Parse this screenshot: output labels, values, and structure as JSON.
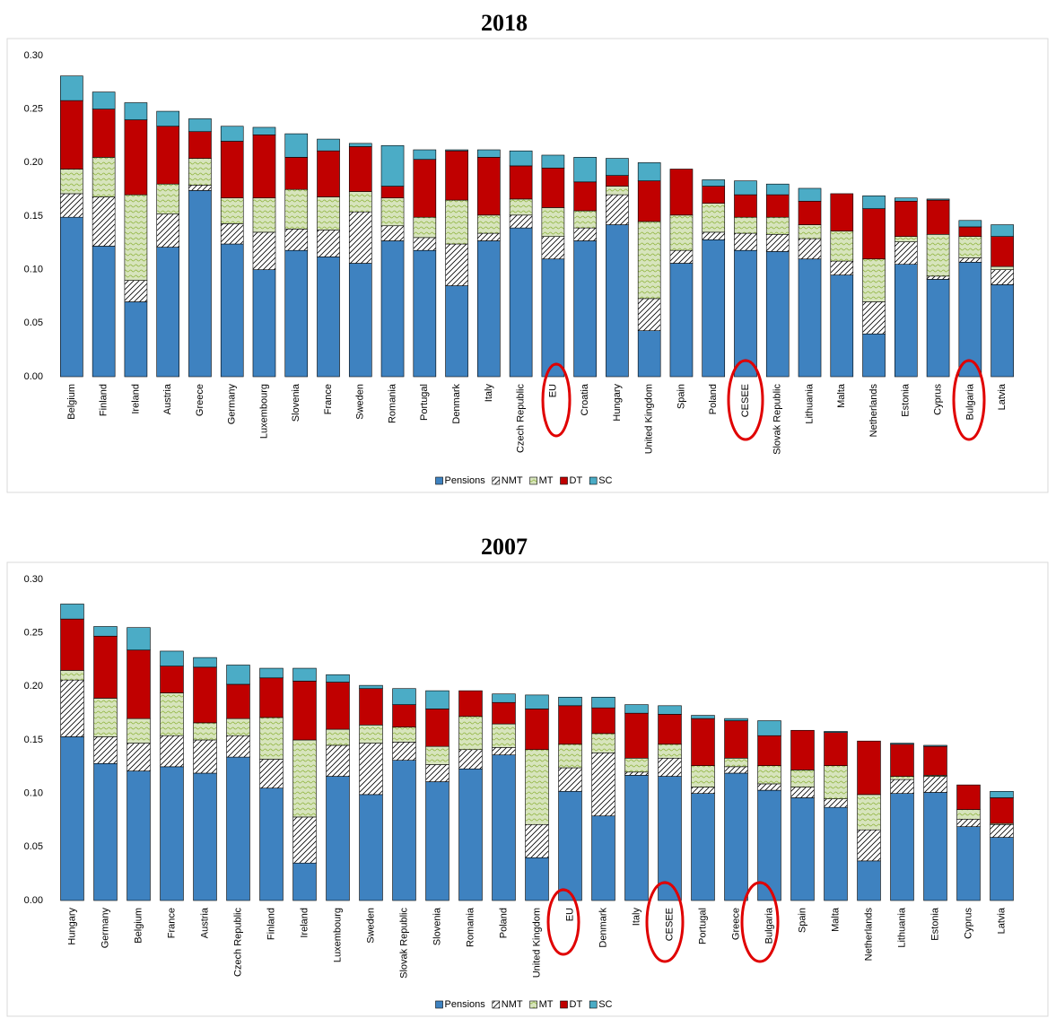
{
  "chart_data": [
    {
      "type": "stacked_bar",
      "title": "2018",
      "categories": [
        "Belgium",
        "Finland",
        "Ireland",
        "Austria",
        "Greece",
        "Germany",
        "Luxembourg",
        "Slovenia",
        "France",
        "Sweden",
        "Romania",
        "Portugal",
        "Denmark",
        "Italy",
        "Czech Republic",
        "EU",
        "Croatia",
        "Hungary",
        "United Kingdom",
        "Spain",
        "Poland",
        "CESEE",
        "Slovak Republic",
        "Lithuania",
        "Malta",
        "Netherlands",
        "Estonia",
        "Cyprus",
        "Bulgaria",
        "Latvia"
      ],
      "series": [
        {
          "name": "Pensions",
          "color": "#2e75b6",
          "values": [
            0.149,
            0.122,
            0.07,
            0.121,
            0.174,
            0.124,
            0.1,
            0.118,
            0.112,
            0.106,
            0.127,
            0.118,
            0.085,
            0.127,
            0.139,
            0.11,
            0.127,
            0.142,
            0.043,
            0.106,
            0.128,
            0.118,
            0.117,
            0.11,
            0.095,
            0.04,
            0.105,
            0.091,
            0.107,
            0.086
          ]
        },
        {
          "name": "NMT",
          "color": "#ffffff",
          "values": [
            0.022,
            0.046,
            0.02,
            0.031,
            0.005,
            0.019,
            0.035,
            0.02,
            0.025,
            0.048,
            0.014,
            0.012,
            0.039,
            0.007,
            0.012,
            0.021,
            0.012,
            0.028,
            0.03,
            0.012,
            0.007,
            0.016,
            0.016,
            0.019,
            0.013,
            0.03,
            0.021,
            0.003,
            0.004,
            0.014
          ]
        },
        {
          "name": "MT",
          "color": "#d7e4bd",
          "values": [
            0.023,
            0.037,
            0.08,
            0.028,
            0.025,
            0.024,
            0.032,
            0.037,
            0.031,
            0.019,
            0.026,
            0.019,
            0.041,
            0.017,
            0.015,
            0.027,
            0.016,
            0.008,
            0.072,
            0.033,
            0.027,
            0.015,
            0.016,
            0.013,
            0.028,
            0.04,
            0.005,
            0.039,
            0.02,
            0.003
          ]
        },
        {
          "name": "DT",
          "color": "#c00000",
          "values": [
            0.064,
            0.045,
            0.07,
            0.054,
            0.025,
            0.053,
            0.059,
            0.03,
            0.043,
            0.042,
            0.011,
            0.054,
            0.046,
            0.054,
            0.031,
            0.037,
            0.027,
            0.01,
            0.038,
            0.043,
            0.016,
            0.021,
            0.021,
            0.022,
            0.035,
            0.047,
            0.033,
            0.032,
            0.009,
            0.028
          ]
        },
        {
          "name": "SC",
          "color": "#4bacc6",
          "values": [
            0.023,
            0.016,
            0.016,
            0.014,
            0.012,
            0.014,
            0.007,
            0.022,
            0.011,
            0.003,
            0.038,
            0.009,
            0.001,
            0.007,
            0.014,
            0.012,
            0.023,
            0.016,
            0.017,
            0,
            0.006,
            0.013,
            0.01,
            0.012,
            0,
            0.012,
            0.003,
            0.001,
            0.006,
            0.011
          ]
        }
      ],
      "ylim": [
        0,
        0.3
      ],
      "yticks": [
        {
          "value": 0,
          "label": "0.00"
        },
        {
          "value": 0.05,
          "label": "0.05"
        },
        {
          "value": 0.1,
          "label": "0.10"
        },
        {
          "value": 0.15,
          "label": "0.15"
        },
        {
          "value": 0.2,
          "label": "0.20"
        },
        {
          "value": 0.25,
          "label": "0.25"
        },
        {
          "value": 0.3,
          "label": "0.30"
        }
      ],
      "grid": false,
      "legend": "bottom"
    },
    {
      "type": "stacked_bar",
      "title": "2007",
      "categories": [
        "Hungary",
        "Germany",
        "Belgium",
        "France",
        "Austria",
        "Czech Republic",
        "Finland",
        "Ireland",
        "Luxembourg",
        "Sweden",
        "Slovak Republic",
        "Slovenia",
        "Romania",
        "Poland",
        "United Kingdom",
        "EU",
        "Denmark",
        "Italy",
        "CESEE",
        "Portugal",
        "Greece",
        "Bulgaria",
        "Spain",
        "Malta",
        "Netherlands",
        "Lithuania",
        "Estonia",
        "Cyprus",
        "Latvia"
      ],
      "series": [
        {
          "name": "Pensions",
          "color": "#2e75b6",
          "values": [
            0.153,
            0.128,
            0.121,
            0.125,
            0.119,
            0.134,
            0.105,
            0.035,
            0.116,
            0.099,
            0.131,
            0.111,
            0.123,
            0.136,
            0.04,
            0.102,
            0.079,
            0.117,
            0.116,
            0.1,
            0.119,
            0.103,
            0.096,
            0.087,
            0.037,
            0.1,
            0.101,
            0.069,
            0.059
          ]
        },
        {
          "name": "NMT",
          "color": "#ffffff",
          "values": [
            0.053,
            0.025,
            0.026,
            0.029,
            0.031,
            0.02,
            0.027,
            0.043,
            0.029,
            0.048,
            0.017,
            0.016,
            0.018,
            0.007,
            0.031,
            0.022,
            0.059,
            0.003,
            0.017,
            0.006,
            0.006,
            0.006,
            0.01,
            0.008,
            0.029,
            0.013,
            0.015,
            0.007,
            0.012
          ]
        },
        {
          "name": "MT",
          "color": "#d7e4bd",
          "values": [
            0.009,
            0.036,
            0.023,
            0.04,
            0.016,
            0.016,
            0.039,
            0.072,
            0.015,
            0.017,
            0.014,
            0.017,
            0.031,
            0.022,
            0.07,
            0.022,
            0.018,
            0.013,
            0.013,
            0.02,
            0.008,
            0.017,
            0.016,
            0.031,
            0.033,
            0.003,
            0.001,
            0.009,
            0.001
          ]
        },
        {
          "name": "DT",
          "color": "#c00000",
          "values": [
            0.048,
            0.058,
            0.064,
            0.025,
            0.052,
            0.032,
            0.037,
            0.055,
            0.044,
            0.034,
            0.021,
            0.035,
            0.024,
            0.02,
            0.038,
            0.036,
            0.024,
            0.042,
            0.028,
            0.044,
            0.035,
            0.028,
            0.037,
            0.031,
            0.05,
            0.03,
            0.027,
            0.023,
            0.024
          ]
        },
        {
          "name": "SC",
          "color": "#4bacc6",
          "values": [
            0.014,
            0.009,
            0.021,
            0.014,
            0.009,
            0.018,
            0.009,
            0.012,
            0.007,
            0.003,
            0.015,
            0.017,
            0,
            0.008,
            0.013,
            0.008,
            0.01,
            0.008,
            0.008,
            0.003,
            0.002,
            0.014,
            0,
            0.001,
            0,
            0.001,
            0.001,
            0,
            0.006
          ]
        }
      ],
      "ylim": [
        0,
        0.3
      ],
      "yticks": [
        {
          "value": 0,
          "label": "0.00"
        },
        {
          "value": 0.05,
          "label": "0.05"
        },
        {
          "value": 0.1,
          "label": "0.10"
        },
        {
          "value": 0.15,
          "label": "0.15"
        },
        {
          "value": 0.2,
          "label": "0.20"
        },
        {
          "value": 0.25,
          "label": "0.25"
        },
        {
          "value": 0.3,
          "label": "0.30"
        }
      ],
      "grid": false,
      "legend": "bottom"
    }
  ]
}
